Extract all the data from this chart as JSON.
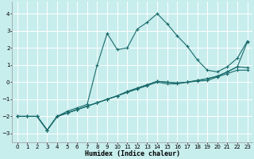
{
  "xlabel": "Humidex (Indice chaleur)",
  "background_color": "#c8eded",
  "grid_color": "#ffffff",
  "line_color": "#1a6b6b",
  "xlim": [
    -0.5,
    23.5
  ],
  "ylim": [
    -3.5,
    4.7
  ],
  "xticks": [
    0,
    1,
    2,
    3,
    4,
    5,
    6,
    7,
    8,
    9,
    10,
    11,
    12,
    13,
    14,
    15,
    16,
    17,
    18,
    19,
    20,
    21,
    22,
    23
  ],
  "yticks": [
    -3,
    -2,
    -1,
    0,
    1,
    2,
    3,
    4
  ],
  "curve1_x": [
    0,
    1,
    2,
    3,
    4,
    5,
    6,
    7,
    8,
    9,
    10,
    11,
    12,
    13,
    14,
    15,
    16,
    17,
    18,
    19,
    20,
    21,
    22,
    23
  ],
  "curve1_y": [
    -2.0,
    -2.0,
    -2.0,
    -2.8,
    -2.0,
    -1.7,
    -1.5,
    -1.3,
    1.0,
    2.85,
    1.9,
    2.0,
    3.1,
    3.5,
    4.0,
    3.4,
    2.7,
    2.1,
    1.3,
    0.7,
    0.6,
    0.9,
    1.4,
    2.4
  ],
  "curve2_x": [
    0,
    1,
    2,
    3,
    4,
    5,
    6,
    7,
    8,
    9,
    10,
    11,
    12,
    13,
    14,
    15,
    16,
    17,
    18,
    19,
    20,
    21,
    22,
    23
  ],
  "curve2_y": [
    -2.0,
    -2.0,
    -2.0,
    -2.8,
    -2.0,
    -1.8,
    -1.6,
    -1.4,
    -1.2,
    -1.0,
    -0.8,
    -0.6,
    -0.4,
    -0.2,
    0.0,
    -0.1,
    -0.1,
    0.0,
    0.05,
    0.1,
    0.3,
    0.5,
    0.7,
    0.7
  ],
  "curve3_x": [
    0,
    1,
    2,
    3,
    4,
    5,
    6,
    7,
    8,
    9,
    10,
    11,
    12,
    13,
    14,
    15,
    16,
    17,
    18,
    19,
    20,
    21,
    22,
    23
  ],
  "curve3_y": [
    -2.0,
    -2.0,
    -2.0,
    -2.8,
    -2.0,
    -1.8,
    -1.6,
    -1.4,
    -1.2,
    -1.0,
    -0.8,
    -0.55,
    -0.35,
    -0.15,
    0.05,
    0.0,
    -0.05,
    0.0,
    0.1,
    0.2,
    0.35,
    0.6,
    0.9,
    0.85
  ],
  "curve4_x": [
    0,
    1,
    2,
    3,
    4,
    5,
    6,
    7,
    8,
    9,
    10,
    11,
    12,
    13,
    14,
    15,
    16,
    17,
    18,
    19,
    20,
    21,
    22,
    23
  ],
  "curve4_y": [
    -2.0,
    -2.0,
    -2.0,
    -2.8,
    -2.0,
    -1.8,
    -1.6,
    -1.4,
    -1.2,
    -1.0,
    -0.8,
    -0.55,
    -0.35,
    -0.15,
    0.05,
    0.0,
    -0.05,
    0.0,
    0.1,
    0.2,
    0.35,
    0.6,
    0.9,
    2.35
  ]
}
